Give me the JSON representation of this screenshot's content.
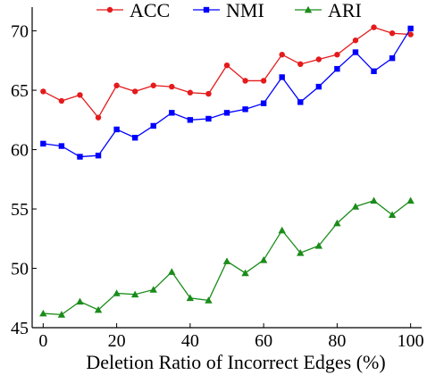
{
  "chart_data": {
    "type": "line",
    "xlabel": "Deletion Ratio of Incorrect Edges (%)",
    "ylabel": "",
    "xlim": [
      -3,
      103
    ],
    "ylim": [
      45,
      72
    ],
    "xticks": [
      0,
      20,
      40,
      60,
      80,
      100
    ],
    "yticks": [
      45,
      50,
      55,
      60,
      65,
      70
    ],
    "grid": false,
    "legend_position": "top",
    "x": [
      0,
      5,
      10,
      15,
      20,
      25,
      30,
      35,
      40,
      45,
      50,
      55,
      60,
      65,
      70,
      75,
      80,
      85,
      90,
      95,
      100
    ],
    "series": [
      {
        "name": "ACC",
        "color": "#e41a1c",
        "marker": "circle",
        "values": [
          64.9,
          64.1,
          64.6,
          62.7,
          65.4,
          64.9,
          65.4,
          65.3,
          64.8,
          64.7,
          67.1,
          65.8,
          65.8,
          68.0,
          67.2,
          67.6,
          68.0,
          69.2,
          70.3,
          69.8,
          69.7
        ]
      },
      {
        "name": "NMI",
        "color": "#0000ff",
        "marker": "square",
        "values": [
          60.5,
          60.3,
          59.4,
          59.5,
          61.7,
          61.0,
          62.0,
          63.1,
          62.5,
          62.6,
          63.1,
          63.4,
          63.9,
          66.1,
          64.0,
          65.3,
          66.8,
          68.2,
          66.6,
          67.7,
          70.2
        ]
      },
      {
        "name": "ARI",
        "color": "#1a8c1a",
        "marker": "triangle",
        "values": [
          46.2,
          46.1,
          47.2,
          46.5,
          47.9,
          47.8,
          48.2,
          49.7,
          47.5,
          47.3,
          50.6,
          49.6,
          50.7,
          53.2,
          51.3,
          51.9,
          53.8,
          55.2,
          55.7,
          54.5,
          55.7
        ]
      }
    ]
  }
}
